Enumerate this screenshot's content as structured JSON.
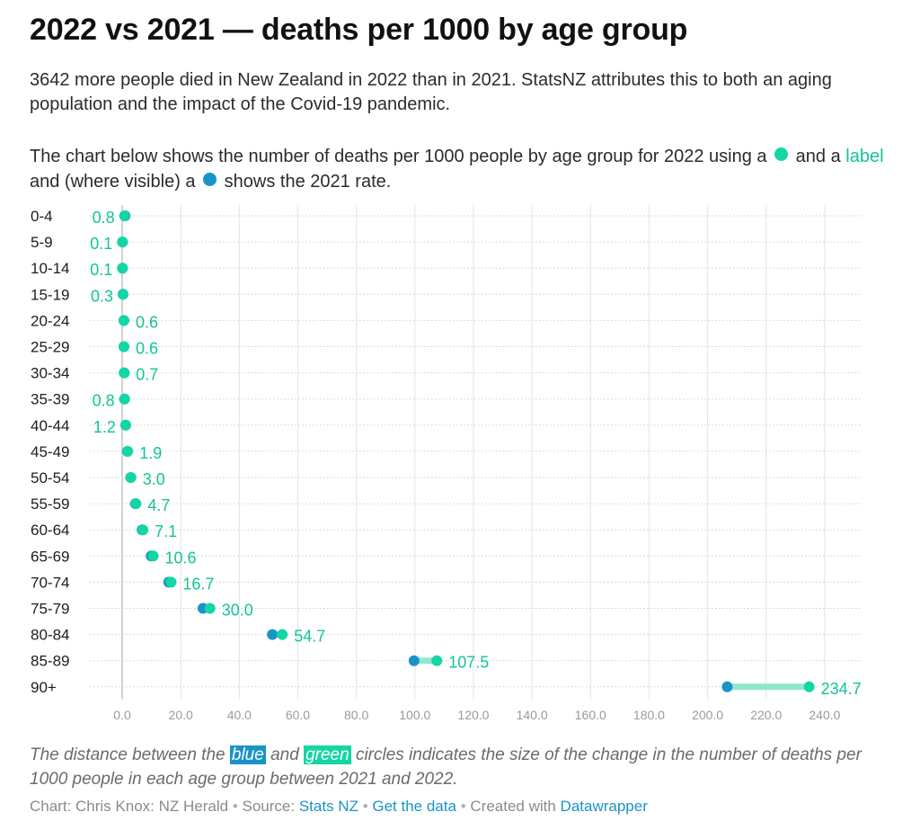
{
  "header": {
    "title": "2022 vs 2021 — deaths per 1000 by age group",
    "intro": "3642 more people died in New Zealand in 2022 than in 2021. StatsNZ attributes this to both an aging population and the impact of the Covid-19 pandemic.",
    "explain_p1": "The chart below shows the number of deaths per 1000 people by age group for 2022 using a",
    "explain_p2": "and a",
    "explain_label_word": "label",
    "explain_p3": "and (where visible) a",
    "explain_p4": "shows the 2021 rate."
  },
  "note": {
    "p1": "The distance between the",
    "blue_word": "blue",
    "p2": "and",
    "green_word": "green",
    "p3": "circles indicates the size of the change in the number of deaths per 1000 people in each age group between 2021 and 2022."
  },
  "footer": {
    "chart_prefix": "Chart: Chris Knox: NZ Herald",
    "sep": "•",
    "source_prefix": "Source:",
    "source_link": "Stats NZ",
    "get_data": "Get the data",
    "created_prefix": "Created with",
    "created_link": "Datawrapper"
  },
  "colors": {
    "green": "#14d6a4",
    "green_text": "#14c398",
    "blue": "#1a94c6",
    "connector": "#8ee8cf",
    "grid": "#e3e3e3",
    "axis": "#c4c4c4"
  },
  "chart_data": {
    "type": "scatter",
    "subtype": "dumbbell",
    "categories": [
      "0-4",
      "5-9",
      "10-14",
      "15-19",
      "20-24",
      "25-29",
      "30-34",
      "35-39",
      "40-44",
      "45-49",
      "50-54",
      "55-59",
      "60-64",
      "65-69",
      "70-74",
      "75-79",
      "80-84",
      "85-89",
      "90+"
    ],
    "series": [
      {
        "name": "2021",
        "values": [
          1.0,
          0.1,
          0.1,
          0.3,
          0.6,
          0.6,
          0.7,
          0.8,
          1.2,
          1.8,
          2.9,
          4.5,
          6.8,
          9.9,
          15.9,
          27.6,
          51.3,
          99.7,
          206.7
        ]
      },
      {
        "name": "2022",
        "values": [
          0.8,
          0.1,
          0.1,
          0.3,
          0.6,
          0.6,
          0.7,
          0.8,
          1.2,
          1.9,
          3.0,
          4.7,
          7.1,
          10.6,
          16.7,
          30.0,
          54.7,
          107.5,
          234.7
        ]
      }
    ],
    "labels": [
      "0.8",
      "0.1",
      "0.1",
      "0.3",
      "0.6",
      "0.6",
      "0.7",
      "0.8",
      "1.2",
      "1.9",
      "3.0",
      "4.7",
      "7.1",
      "10.6",
      "16.7",
      "30.0",
      "54.7",
      "107.5",
      "234.7"
    ],
    "label_side": [
      "left",
      "left",
      "left",
      "left",
      "right",
      "right",
      "right",
      "left",
      "left",
      "right",
      "right",
      "right",
      "right",
      "right",
      "right",
      "right",
      "right",
      "right",
      "right"
    ],
    "xticks": [
      "0.0",
      "20.0",
      "40.0",
      "60.0",
      "80.0",
      "100.0",
      "120.0",
      "140.0",
      "160.0",
      "180.0",
      "200.0",
      "220.0",
      "240.0"
    ],
    "xlim": [
      0,
      250
    ],
    "grid": true,
    "title": "2022 vs 2021 — deaths per 1000 by age group",
    "xlabel": "",
    "ylabel": ""
  }
}
